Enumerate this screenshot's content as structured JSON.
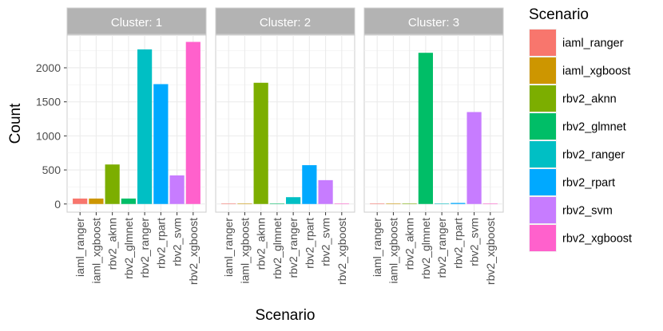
{
  "chart_data": {
    "type": "bar",
    "title": "",
    "xlabel": "Scenario",
    "ylabel": "Count",
    "ylim": [
      -120,
      2480
    ],
    "yticks": [
      0,
      500,
      1000,
      1500,
      2000
    ],
    "grid": true,
    "legend_position": "right",
    "legend_title": "Scenario",
    "categories": [
      "iaml_ranger",
      "iaml_xgboost",
      "rbv2_aknn",
      "rbv2_glmnet",
      "rbv2_ranger",
      "rbv2_rpart",
      "rbv2_svm",
      "rbv2_xgboost"
    ],
    "colors": [
      "#F8766D",
      "#CD9600",
      "#7CAE00",
      "#00BE67",
      "#00BFC4",
      "#00A9FF",
      "#C77CFF",
      "#FF61CC"
    ],
    "panels": [
      {
        "label": "Cluster: 1",
        "values": [
          80,
          80,
          580,
          80,
          2270,
          1760,
          420,
          2380
        ]
      },
      {
        "label": "Cluster: 2",
        "values": [
          0,
          0,
          1780,
          0,
          100,
          570,
          350,
          0
        ]
      },
      {
        "label": "Cluster: 3",
        "values": [
          0,
          0,
          0,
          2220,
          0,
          15,
          1350,
          0
        ]
      }
    ]
  }
}
